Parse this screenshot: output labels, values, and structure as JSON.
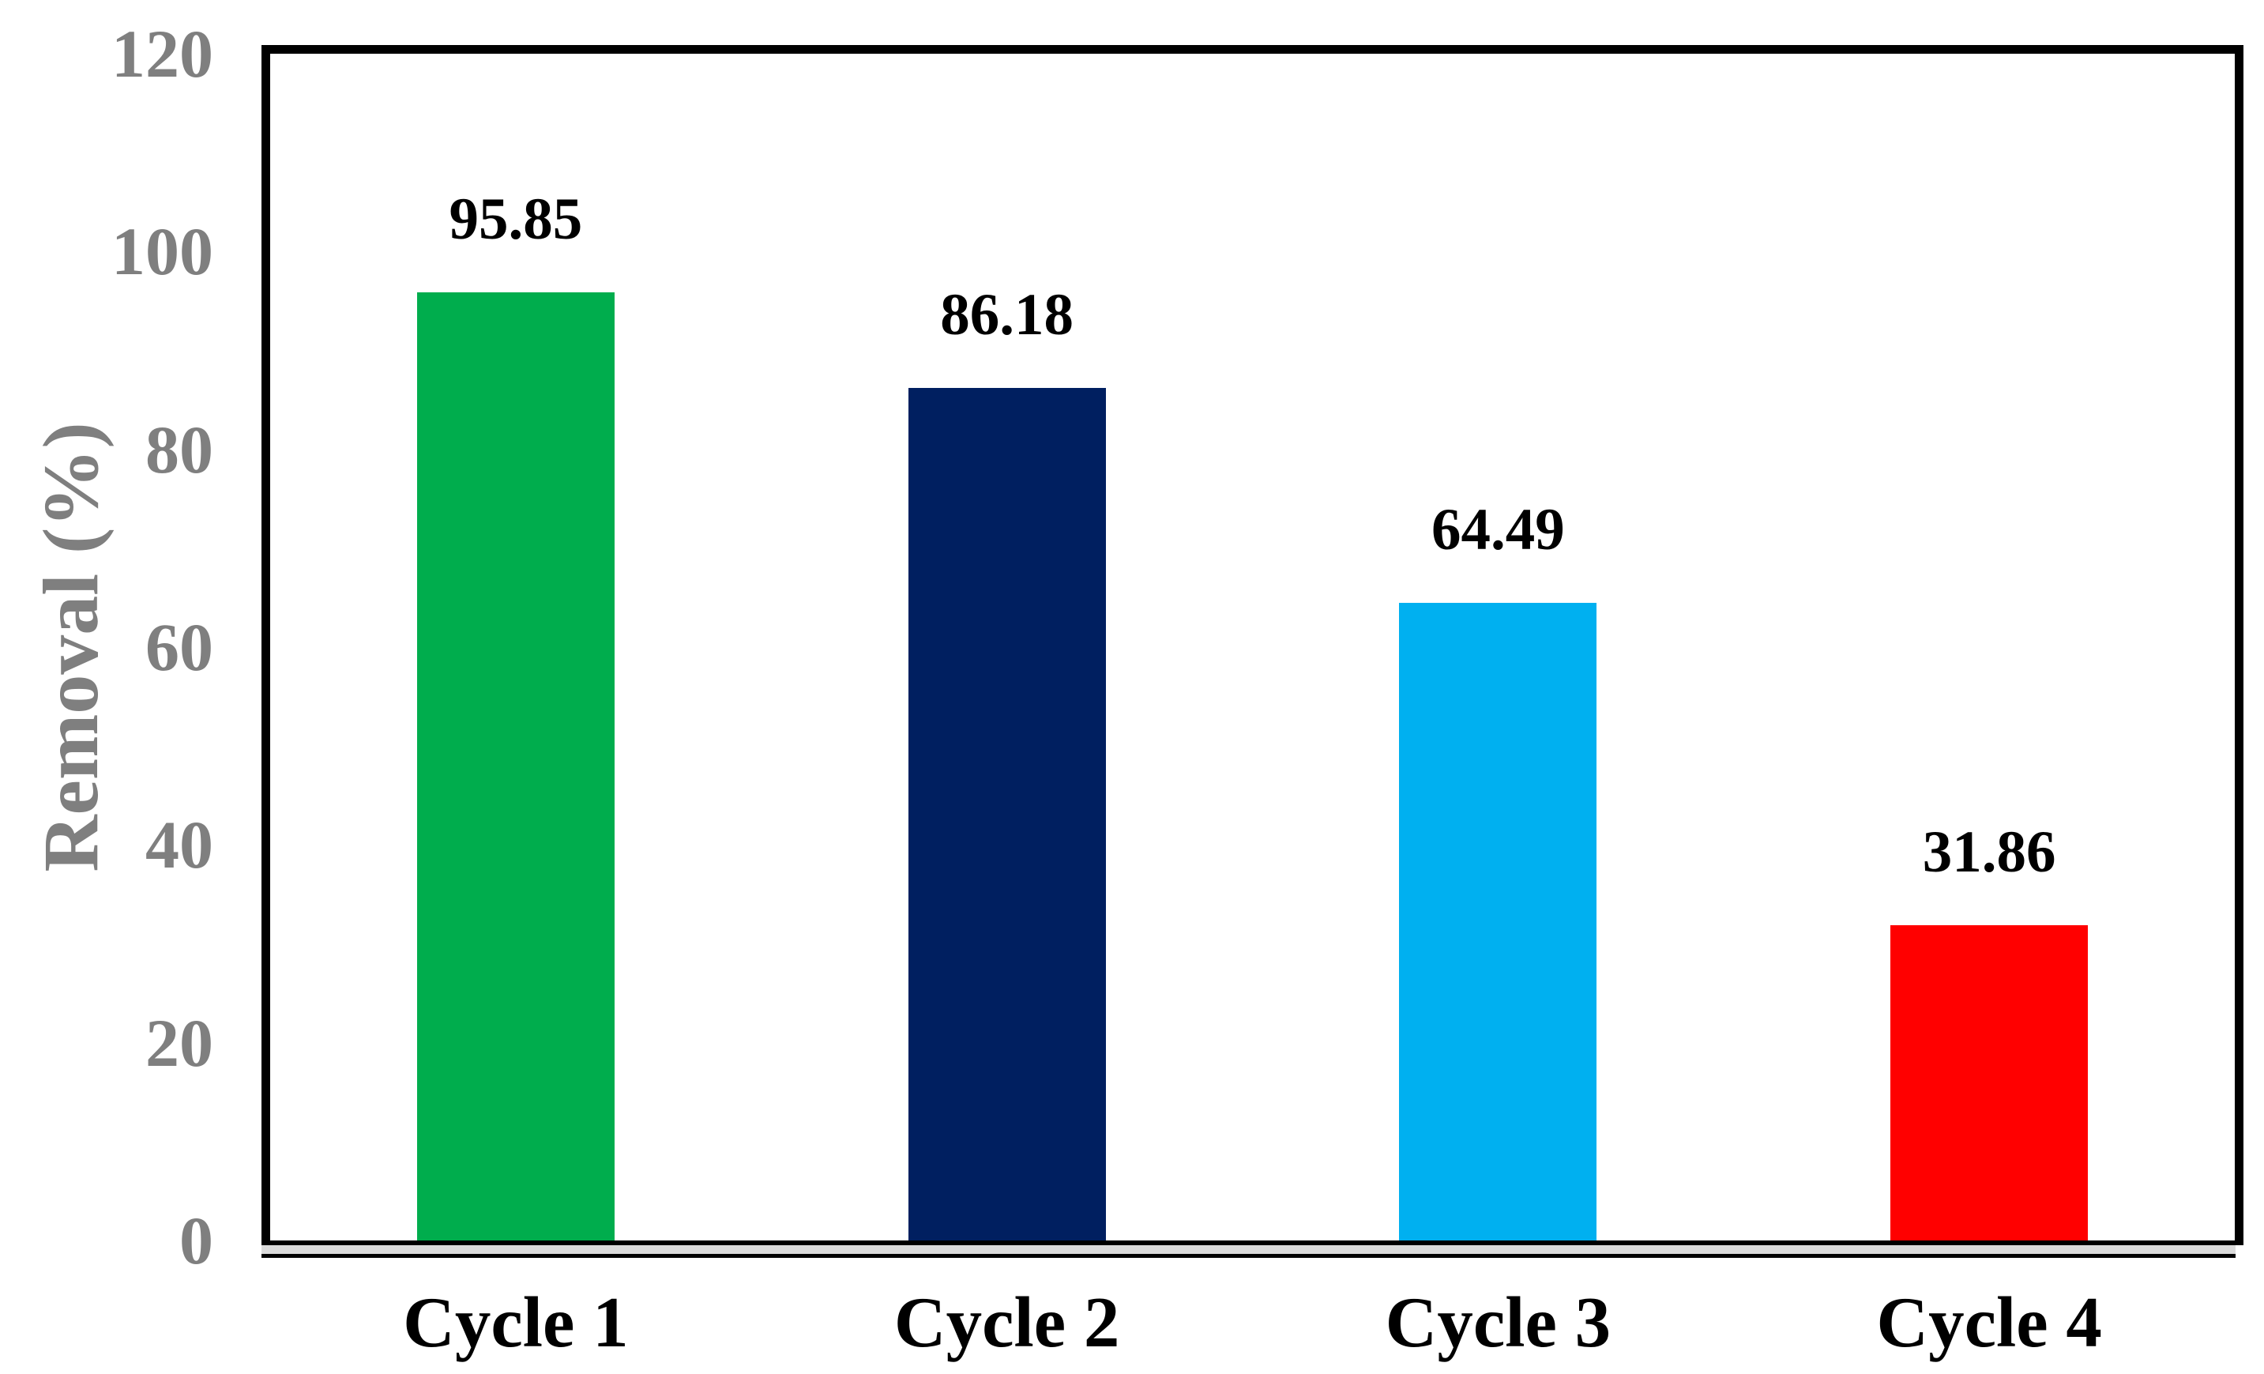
{
  "chart_data": {
    "type": "bar",
    "categories": [
      "Cycle 1",
      "Cycle 2",
      "Cycle 3",
      "Cycle 4"
    ],
    "values": [
      95.85,
      86.18,
      64.49,
      31.86
    ],
    "value_labels": [
      "95.85",
      "86.18",
      "64.49",
      "31.86"
    ],
    "bar_colors": [
      "#00AD4D",
      "#001F60",
      "#00B0F0",
      "#FF0000"
    ],
    "title": "",
    "xlabel": "",
    "ylabel": "Removal (%)",
    "ylim": [
      0,
      120
    ],
    "ytick_step": 20,
    "ytick_labels": [
      "0",
      "20",
      "40",
      "60",
      "80",
      "100",
      "120"
    ],
    "grid": false,
    "legend_position": "none",
    "axis_label_color": "#7F7F7F",
    "value_label_color": "#000000",
    "plot_border_color": "#000000",
    "axis_shadow_color": "#DBDBDB"
  }
}
